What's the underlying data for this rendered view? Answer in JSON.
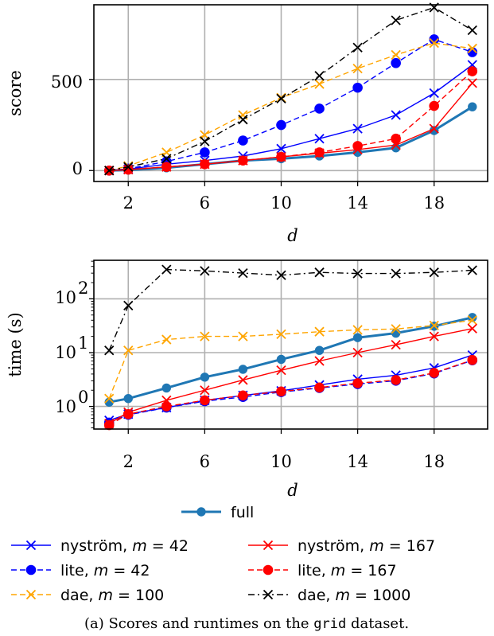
{
  "chart_data": [
    {
      "type": "line",
      "xlabel": "d",
      "ylabel": "score",
      "xticks": [
        2,
        6,
        10,
        14,
        18
      ],
      "yticks": [
        0,
        500
      ],
      "xlim": [
        0.2,
        20.8
      ],
      "ylim": [
        -60,
        910
      ],
      "yscale": "linear",
      "grid": true,
      "series": [
        {
          "key": "full",
          "x": [
            1,
            2,
            4,
            6,
            8,
            10,
            12,
            14,
            16,
            18,
            20
          ],
          "values": [
            0,
            3,
            15,
            35,
            55,
            65,
            80,
            100,
            125,
            220,
            350
          ]
        },
        {
          "key": "nys42",
          "x": [
            1,
            2,
            4,
            6,
            8,
            10,
            12,
            14,
            16,
            18,
            20
          ],
          "values": [
            0,
            8,
            35,
            55,
            80,
            120,
            175,
            230,
            305,
            425,
            580
          ]
        },
        {
          "key": "lite42",
          "x": [
            1,
            2,
            4,
            6,
            8,
            10,
            12,
            14,
            16,
            18,
            20
          ],
          "values": [
            0,
            10,
            50,
            100,
            165,
            250,
            340,
            455,
            590,
            720,
            650
          ]
        },
        {
          "key": "dae100",
          "x": [
            1,
            2,
            4,
            6,
            8,
            10,
            12,
            14,
            16,
            18,
            20
          ],
          "values": [
            0,
            25,
            100,
            195,
            305,
            400,
            475,
            560,
            635,
            700,
            670
          ]
        },
        {
          "key": "nys167",
          "x": [
            1,
            2,
            4,
            6,
            8,
            10,
            12,
            14,
            16,
            18,
            20
          ],
          "values": [
            0,
            5,
            20,
            35,
            55,
            75,
            95,
            115,
            140,
            230,
            480
          ]
        },
        {
          "key": "lite167",
          "x": [
            1,
            2,
            4,
            6,
            8,
            10,
            12,
            14,
            16,
            18,
            20
          ],
          "values": [
            0,
            5,
            20,
            35,
            55,
            75,
            100,
            135,
            175,
            355,
            545
          ]
        },
        {
          "key": "dae1000",
          "x": [
            1,
            2,
            4,
            6,
            8,
            10,
            12,
            14,
            16,
            18,
            20
          ],
          "values": [
            0,
            20,
            65,
            160,
            280,
            395,
            520,
            675,
            825,
            895,
            770
          ]
        }
      ]
    },
    {
      "type": "line",
      "xlabel": "d",
      "ylabel": "time (s)",
      "xticks": [
        2,
        6,
        10,
        14,
        18
      ],
      "yticks": [
        "10^0",
        "10^1",
        "10^2"
      ],
      "xlim": [
        0.2,
        20.8
      ],
      "ylim": [
        0.38,
        520
      ],
      "yscale": "log",
      "grid": true,
      "series": [
        {
          "key": "full",
          "x": [
            1,
            2,
            4,
            6,
            8,
            10,
            12,
            14,
            16,
            18,
            20
          ],
          "values": [
            1.2,
            1.4,
            2.2,
            3.5,
            4.9,
            7.5,
            11,
            19,
            23,
            31,
            45
          ]
        },
        {
          "key": "nys42",
          "x": [
            1,
            2,
            4,
            6,
            8,
            10,
            12,
            14,
            16,
            18,
            20
          ],
          "values": [
            0.55,
            0.72,
            0.95,
            1.3,
            1.6,
            1.95,
            2.5,
            3.2,
            3.8,
            5.2,
            9
          ]
        },
        {
          "key": "lite42",
          "x": [
            1,
            2,
            4,
            6,
            8,
            10,
            12,
            14,
            16,
            18,
            20
          ],
          "values": [
            0.5,
            0.7,
            0.95,
            1.25,
            1.5,
            1.85,
            2.2,
            2.6,
            3.0,
            4.1,
            7.2
          ]
        },
        {
          "key": "dae100",
          "x": [
            1,
            2,
            4,
            6,
            8,
            10,
            12,
            14,
            16,
            18,
            20
          ],
          "values": [
            1.4,
            11,
            17.5,
            20,
            20,
            22,
            24.5,
            26.5,
            27.5,
            32,
            40
          ]
        },
        {
          "key": "nys167",
          "x": [
            1,
            2,
            4,
            6,
            8,
            10,
            12,
            14,
            16,
            18,
            20
          ],
          "values": [
            0.48,
            0.78,
            1.3,
            2.0,
            3.1,
            4.7,
            7.0,
            10,
            14,
            20,
            28
          ]
        },
        {
          "key": "lite167",
          "x": [
            1,
            2,
            4,
            6,
            8,
            10,
            12,
            14,
            16,
            18,
            20
          ],
          "values": [
            0.45,
            0.72,
            1.0,
            1.3,
            1.6,
            1.9,
            2.25,
            2.7,
            3.1,
            4.2,
            7.3
          ]
        },
        {
          "key": "dae1000",
          "x": [
            1,
            2,
            4,
            6,
            8,
            10,
            12,
            14,
            16,
            18,
            20
          ],
          "values": [
            11,
            75,
            350,
            330,
            300,
            275,
            310,
            295,
            295,
            310,
            340
          ]
        }
      ]
    }
  ],
  "styles": {
    "full": {
      "color": "#1f77b4",
      "marker": "circle",
      "dash": "solid",
      "width": "thick"
    },
    "nys42": {
      "color": "#0000ff",
      "marker": "x",
      "dash": "solid",
      "width": "thin"
    },
    "lite42": {
      "color": "#0000ff",
      "marker": "circle",
      "dash": "dashed",
      "width": "thin"
    },
    "dae100": {
      "color": "#ffa500",
      "marker": "x",
      "dash": "dashed",
      "width": "thin"
    },
    "nys167": {
      "color": "#ff0000",
      "marker": "x",
      "dash": "solid",
      "width": "thin"
    },
    "lite167": {
      "color": "#ff0000",
      "marker": "circle",
      "dash": "dashed",
      "width": "thin"
    },
    "dae1000": {
      "color": "#000000",
      "marker": "x",
      "dash": "dashdot",
      "width": "thin"
    }
  },
  "legend": {
    "full": "full",
    "nys42_prefix": "nyström, ",
    "lite42_prefix": "lite, ",
    "dae100_prefix": "dae, ",
    "nys167_prefix": "nyström, ",
    "lite167_prefix": "lite, ",
    "dae1000_prefix": "dae, ",
    "m_symbol": "m",
    "eq": " = ",
    "m42": "42",
    "m100": "100",
    "m167": "167",
    "m1000": "1000"
  },
  "caption": {
    "prefix": "(a) Scores and runtimes on the ",
    "dataset": "grid",
    "suffix": " dataset."
  },
  "ticks": {
    "score_0": "0",
    "score_500": "500",
    "time_base": "10",
    "time_exp_0": "0",
    "time_exp_1": "1",
    "time_exp_2": "2"
  }
}
